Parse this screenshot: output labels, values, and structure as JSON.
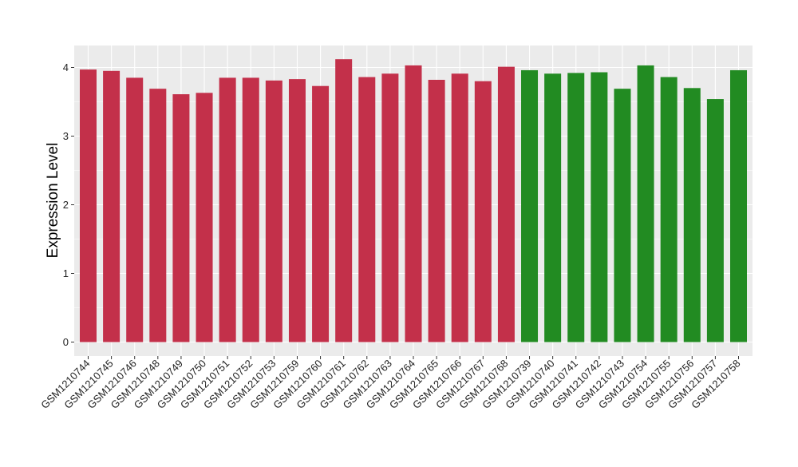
{
  "chart_data": {
    "type": "bar",
    "title": "",
    "xlabel": "",
    "ylabel": "Expression Level",
    "ylim": [
      0,
      4.22
    ],
    "yticks": [
      0,
      1,
      2,
      3,
      4
    ],
    "grid": true,
    "legend": "none",
    "colors": {
      "group1": "#C3304A",
      "group2": "#228B22",
      "panel": "#EBEBEB",
      "gridline": "#FFFFFF"
    },
    "categories": [
      "GSM1210744",
      "GSM1210745",
      "GSM1210746",
      "GSM1210748",
      "GSM1210749",
      "GSM1210750",
      "GSM1210751",
      "GSM1210752",
      "GSM1210753",
      "GSM1210759",
      "GSM1210760",
      "GSM1210761",
      "GSM1210762",
      "GSM1210763",
      "GSM1210764",
      "GSM1210765",
      "GSM1210766",
      "GSM1210767",
      "GSM1210768",
      "GSM1210739",
      "GSM1210740",
      "GSM1210741",
      "GSM1210742",
      "GSM1210743",
      "GSM1210754",
      "GSM1210755",
      "GSM1210756",
      "GSM1210757",
      "GSM1210758"
    ],
    "values": [
      3.97,
      3.95,
      3.85,
      3.69,
      3.61,
      3.63,
      3.85,
      3.85,
      3.81,
      3.83,
      3.73,
      4.12,
      3.86,
      3.91,
      4.03,
      3.82,
      3.91,
      3.8,
      4.01,
      3.96,
      3.91,
      3.92,
      3.93,
      3.69,
      4.03,
      3.86,
      3.7,
      3.54,
      3.96
    ],
    "bar_groups": [
      "group1",
      "group1",
      "group1",
      "group1",
      "group1",
      "group1",
      "group1",
      "group1",
      "group1",
      "group1",
      "group1",
      "group1",
      "group1",
      "group1",
      "group1",
      "group1",
      "group1",
      "group1",
      "group1",
      "group2",
      "group2",
      "group2",
      "group2",
      "group2",
      "group2",
      "group2",
      "group2",
      "group2",
      "group2"
    ]
  }
}
